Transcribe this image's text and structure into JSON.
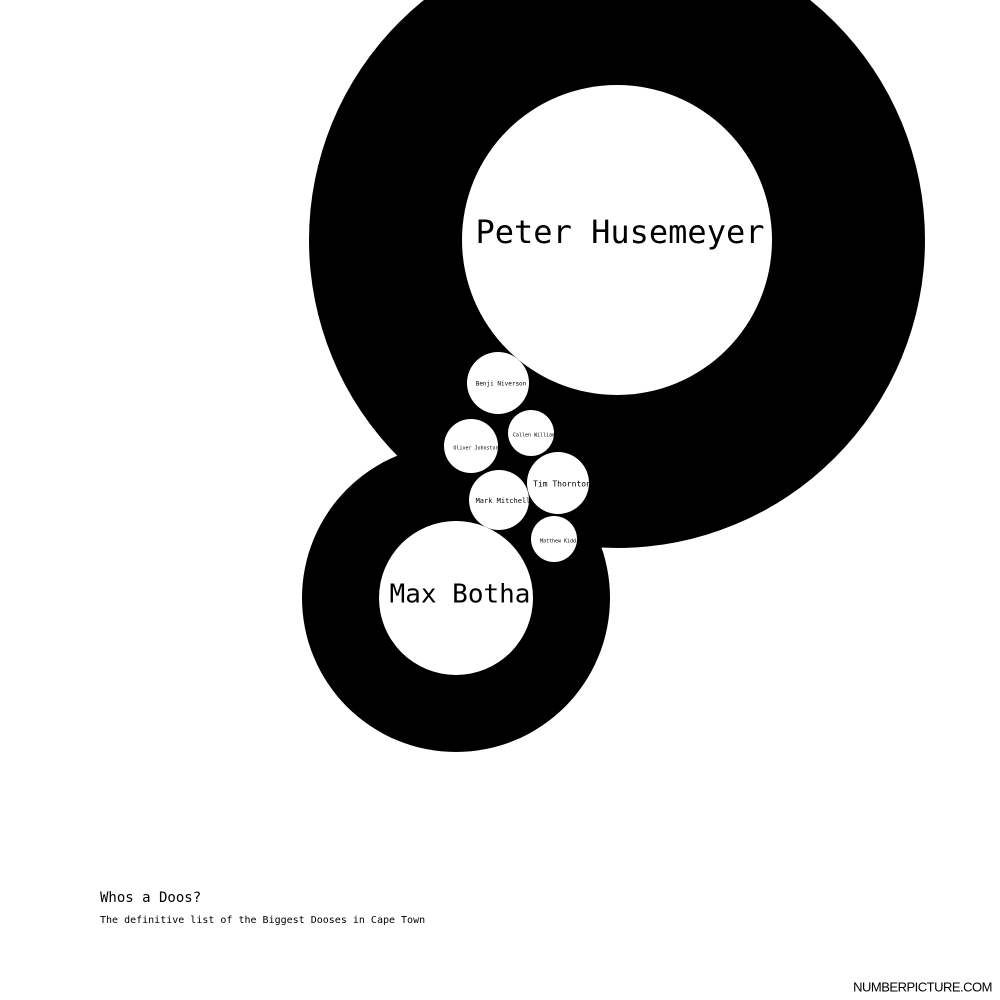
{
  "title": "Whos a Doos?",
  "subtitle": "The definitive list of the Biggest Dooses in Cape Town",
  "credit": "NUMBERPICTURE.COM",
  "nodes": [
    {
      "label": "Peter Husemeyer"
    },
    {
      "label": "Max Botha"
    },
    {
      "label": "Benji Niverson"
    },
    {
      "label": "Callen William"
    },
    {
      "label": "Oliver Johnston"
    },
    {
      "label": "Tim Thornton"
    },
    {
      "label": "Mark Mitchell"
    },
    {
      "label": "Matthew Kidd"
    }
  ]
}
